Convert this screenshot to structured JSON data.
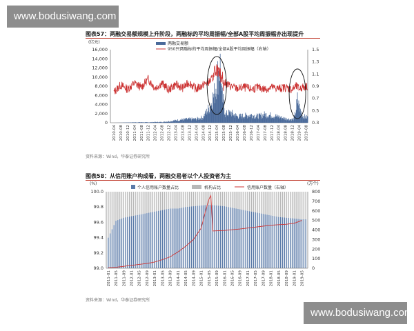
{
  "watermark_top": "www.bodusiwang.com",
  "watermark_bottom": "www.bodusiwang.com",
  "chart_data": [
    {
      "type": "bar+line",
      "title": "图表57：两融交易额规模上升阶段，两融标的平均周振幅/全部A股平均周振幅亦出现提升",
      "source": "资料来源：Wind，华泰证券研究所",
      "left_unit": "(亿元)",
      "y_left_ticks": [
        "0",
        "2,000",
        "4,000",
        "6,000",
        "8,000",
        "10,000",
        "12,000",
        "14,000",
        "16,000"
      ],
      "y_left_range": [
        0,
        16000
      ],
      "y_right_ticks": [
        "0.3",
        "0.5",
        "0.7",
        "0.9",
        "1.1",
        "1.3",
        "1.5"
      ],
      "y_right_range": [
        0.3,
        1.5
      ],
      "x_ticks": [
        "2010-04",
        "2010-08",
        "2010-12",
        "2011-04",
        "2011-08",
        "2011-12",
        "2012-04",
        "2012-08",
        "2012-12",
        "2013-04",
        "2013-08",
        "2013-12",
        "2014-04",
        "2014-08",
        "2014-12",
        "2015-04",
        "2015-08",
        "2015-12",
        "2016-04",
        "2016-08",
        "2016-12",
        "2017-04",
        "2017-08",
        "2017-12",
        "2018-04",
        "2018-08",
        "2018-12",
        "2019-04",
        "2019-08"
      ],
      "legend": [
        "两融交易额",
        "950只两融标的平均周振幅/全部A股平均周振幅（右轴）"
      ],
      "colors": {
        "bar": "#4a6a9a",
        "line": "#cc3333"
      },
      "bar_series": {
        "name": "两融交易额",
        "points": [
          [
            "2010-04",
            0
          ],
          [
            "2010-08",
            20
          ],
          [
            "2010-12",
            60
          ],
          [
            "2011-04",
            90
          ],
          [
            "2011-08",
            110
          ],
          [
            "2011-12",
            90
          ],
          [
            "2012-04",
            150
          ],
          [
            "2012-08",
            150
          ],
          [
            "2012-12",
            300
          ],
          [
            "2013-04",
            500
          ],
          [
            "2013-08",
            700
          ],
          [
            "2013-12",
            800
          ],
          [
            "2014-04",
            800
          ],
          [
            "2014-08",
            1200
          ],
          [
            "2014-12",
            3500
          ],
          [
            "2015-01",
            4500
          ],
          [
            "2015-03",
            7000
          ],
          [
            "2015-04",
            9500
          ],
          [
            "2015-05",
            11000
          ],
          [
            "2015-06",
            12500
          ],
          [
            "2015-07",
            6000
          ],
          [
            "2015-08",
            4000
          ],
          [
            "2015-09",
            1800
          ],
          [
            "2015-12",
            2200
          ],
          [
            "2016-04",
            1400
          ],
          [
            "2016-08",
            1500
          ],
          [
            "2016-12",
            1700
          ],
          [
            "2017-04",
            1400
          ],
          [
            "2017-08",
            1800
          ],
          [
            "2017-12",
            1600
          ],
          [
            "2018-04",
            1300
          ],
          [
            "2018-08",
            900
          ],
          [
            "2018-12",
            700
          ],
          [
            "2019-01",
            900
          ],
          [
            "2019-02",
            2500
          ],
          [
            "2019-03",
            5000
          ],
          [
            "2019-04",
            3500
          ],
          [
            "2019-06",
            1500
          ],
          [
            "2019-08",
            1200
          ]
        ]
      },
      "line_series": {
        "name": "950只两融标的平均周振幅/全部A股平均周振幅（右轴）",
        "points": [
          [
            "2010-04",
            0.8
          ],
          [
            "2010-08",
            0.92
          ],
          [
            "2010-12",
            0.85
          ],
          [
            "2011-04",
            0.95
          ],
          [
            "2011-08",
            0.88
          ],
          [
            "2011-12",
            1.02
          ],
          [
            "2012-04",
            0.87
          ],
          [
            "2012-08",
            0.95
          ],
          [
            "2012-12",
            0.84
          ],
          [
            "2013-04",
            0.93
          ],
          [
            "2013-08",
            0.87
          ],
          [
            "2013-12",
            0.96
          ],
          [
            "2014-04",
            0.85
          ],
          [
            "2014-08",
            0.92
          ],
          [
            "2014-12",
            0.98
          ],
          [
            "2015-02",
            1.05
          ],
          [
            "2015-04",
            1.22
          ],
          [
            "2015-06",
            1.1
          ],
          [
            "2015-08",
            0.96
          ],
          [
            "2015-12",
            0.9
          ],
          [
            "2016-04",
            0.86
          ],
          [
            "2016-08",
            0.88
          ],
          [
            "2016-12",
            0.85
          ],
          [
            "2017-04",
            0.88
          ],
          [
            "2017-08",
            0.85
          ],
          [
            "2017-12",
            0.88
          ],
          [
            "2018-04",
            0.86
          ],
          [
            "2018-08",
            0.88
          ],
          [
            "2018-12",
            0.84
          ],
          [
            "2019-02",
            0.9
          ],
          [
            "2019-04",
            0.86
          ],
          [
            "2019-08",
            0.9
          ]
        ]
      },
      "highlight_regions": [
        "2015-04",
        "2019-03"
      ]
    },
    {
      "type": "bar+line",
      "title": "图表58：从信用账户构成看，两融交易者以个人投资者为主",
      "source": "资料来源：Wind，华泰证券研究所",
      "left_unit": "(%)",
      "right_unit": "(万个)",
      "y_left_ticks": [
        "99.0",
        "99.2",
        "99.4",
        "99.6",
        "99.8",
        "100.0"
      ],
      "y_left_range": [
        99.0,
        100.0
      ],
      "y_right_ticks": [
        "0",
        "100",
        "200",
        "300",
        "400",
        "500",
        "600",
        "700",
        "800"
      ],
      "y_right_range": [
        0,
        800
      ],
      "x_ticks": [
        "2011-01",
        "2011-05",
        "2011-09",
        "2012-01",
        "2012-05",
        "2012-09",
        "2013-01",
        "2013-05",
        "2013-09",
        "2014-01",
        "2014-05",
        "2014-09",
        "2015-01",
        "2015-05",
        "2015-09",
        "2016-01",
        "2016-05",
        "2016-09",
        "2017-01",
        "2017-05",
        "2017-09",
        "2018-01",
        "2018-05",
        "2018-09",
        "2019-01",
        "2019-05"
      ],
      "legend": [
        "个人信用账户数量占比",
        "机构占比",
        "信用账户数量（右轴）"
      ],
      "colors": {
        "personal": "#5a7aa8",
        "institution": "#b8b8b8",
        "line": "#cc3333"
      },
      "personal_share_series": {
        "name": "个人信用账户数量占比",
        "points": [
          [
            "2011-01",
            99.4
          ],
          [
            "2011-05",
            99.62
          ],
          [
            "2011-09",
            99.66
          ],
          [
            "2012-01",
            99.68
          ],
          [
            "2012-05",
            99.7
          ],
          [
            "2012-09",
            99.72
          ],
          [
            "2013-01",
            99.74
          ],
          [
            "2013-05",
            99.76
          ],
          [
            "2013-09",
            99.78
          ],
          [
            "2014-01",
            99.78
          ],
          [
            "2014-05",
            99.8
          ],
          [
            "2014-09",
            99.81
          ],
          [
            "2015-01",
            99.82
          ],
          [
            "2015-05",
            99.83
          ],
          [
            "2015-09",
            99.82
          ],
          [
            "2016-01",
            99.81
          ],
          [
            "2016-05",
            99.79
          ],
          [
            "2016-09",
            99.77
          ],
          [
            "2017-01",
            99.75
          ],
          [
            "2017-05",
            99.73
          ],
          [
            "2017-09",
            99.71
          ],
          [
            "2018-01",
            99.69
          ],
          [
            "2018-05",
            99.67
          ],
          [
            "2018-09",
            99.66
          ],
          [
            "2019-01",
            99.65
          ],
          [
            "2019-05",
            99.64
          ]
        ]
      },
      "account_count_series": {
        "name": "信用账户数量（右轴）",
        "points": [
          [
            "2011-01",
            5
          ],
          [
            "2011-05",
            10
          ],
          [
            "2011-09",
            20
          ],
          [
            "2012-01",
            30
          ],
          [
            "2012-05",
            40
          ],
          [
            "2012-09",
            50
          ],
          [
            "2013-01",
            65
          ],
          [
            "2013-05",
            90
          ],
          [
            "2013-09",
            120
          ],
          [
            "2014-01",
            170
          ],
          [
            "2014-05",
            230
          ],
          [
            "2014-09",
            300
          ],
          [
            "2015-01",
            420
          ],
          [
            "2015-03",
            580
          ],
          [
            "2015-05",
            720
          ],
          [
            "2015-06",
            760
          ],
          [
            "2015-07",
            390
          ],
          [
            "2016-01",
            395
          ],
          [
            "2016-09",
            410
          ],
          [
            "2017-05",
            430
          ],
          [
            "2018-01",
            450
          ],
          [
            "2018-09",
            460
          ],
          [
            "2019-01",
            470
          ],
          [
            "2019-05",
            500
          ]
        ]
      }
    }
  ]
}
